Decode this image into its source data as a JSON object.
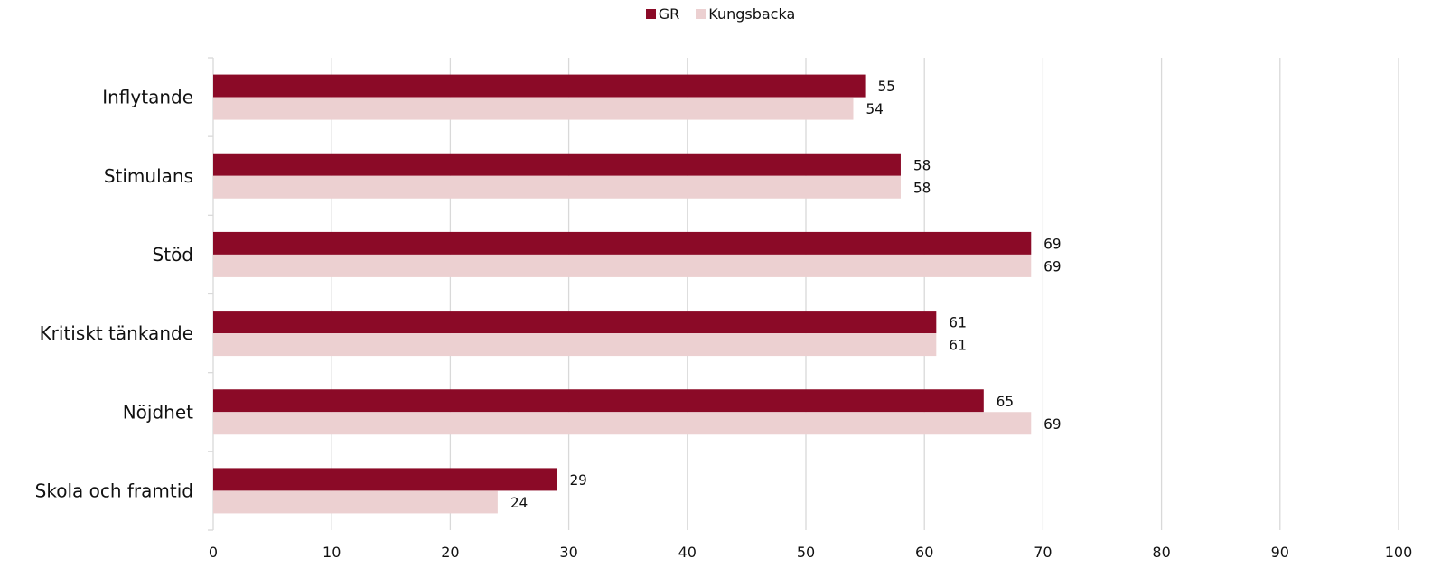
{
  "chart_data": {
    "type": "bar",
    "orientation": "horizontal",
    "categories": [
      "Inflytande",
      "Stimulans",
      "Stöd",
      "Kritiskt tänkande",
      "Nöjdhet",
      "Skola och framtid"
    ],
    "series": [
      {
        "name": "GR",
        "values": [
          55,
          58,
          69,
          61,
          65,
          29
        ],
        "color": "#8b0a27"
      },
      {
        "name": "Kungsbacka",
        "values": [
          54,
          58,
          69,
          61,
          69,
          24
        ],
        "color": "#ecd0d1"
      }
    ],
    "x_ticks": [
      "0",
      "10",
      "20",
      "30",
      "40",
      "50",
      "60",
      "70",
      "80",
      "90",
      "100"
    ],
    "xlim": [
      0,
      100
    ],
    "grid": true,
    "gridline_color": "#d9d9d9",
    "legend_position": "top-center",
    "title": "",
    "xlabel": "",
    "ylabel": ""
  }
}
